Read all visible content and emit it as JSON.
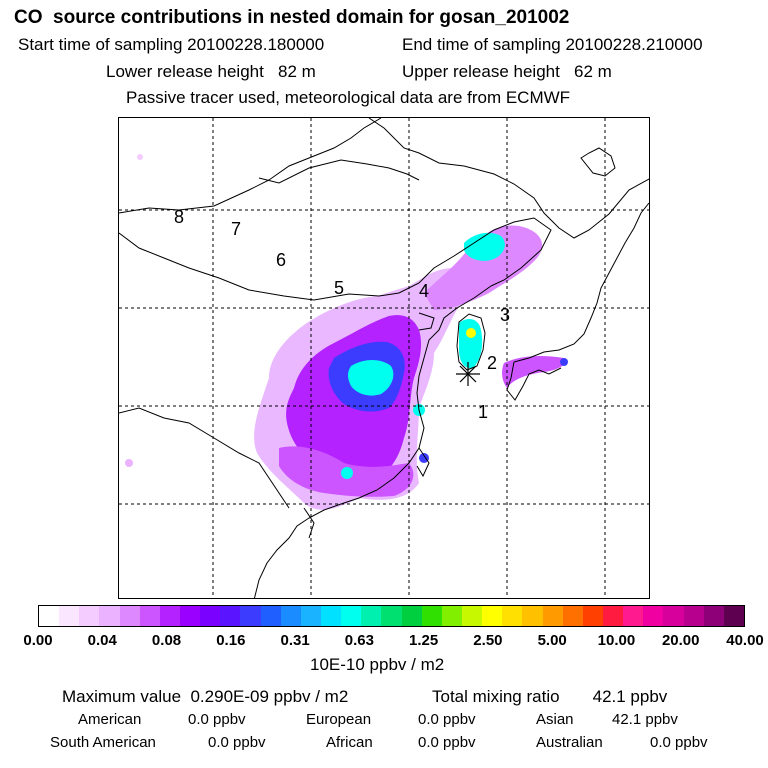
{
  "title": "CO  source contributions in nested domain for gosan_201002",
  "start_label": "Start time of sampling 20100228.180000",
  "end_label": "End time of sampling 20100228.210000",
  "lower_label": "Lower release height   82 m",
  "upper_label": "Upper release height   62 m",
  "tracer_note": "Passive tracer used, meteorological data are from ECMWF",
  "map": {
    "region_labels": [
      "8",
      "7",
      "6",
      "5",
      "4",
      "3",
      "2",
      "1"
    ],
    "station_marker": "asterisk-icon"
  },
  "colorbar": {
    "ticks": [
      "0.00",
      "0.04",
      "0.08",
      "0.16",
      "0.31",
      "0.63",
      "1.25",
      "2.50",
      "5.00",
      "10.00",
      "20.00",
      "40.00"
    ],
    "unit": "10E-10 ppbv / m2",
    "colors": [
      "#ffffff",
      "#fbe6ff",
      "#f4ccff",
      "#eab2ff",
      "#dd88ff",
      "#cc55ff",
      "#b322ff",
      "#9900ff",
      "#7a00ff",
      "#5a14ff",
      "#3c3cff",
      "#1f5fff",
      "#1a8cff",
      "#19b3ff",
      "#00e0ff",
      "#00ffee",
      "#00f0b0",
      "#00e070",
      "#00d040",
      "#30e000",
      "#80f000",
      "#c8f800",
      "#ffff00",
      "#ffe000",
      "#ffc000",
      "#ff9a00",
      "#ff7000",
      "#ff4000",
      "#ff1a40",
      "#ff1a90",
      "#f000a0",
      "#d8009c",
      "#b8008e",
      "#8e0078",
      "#5e004f"
    ]
  },
  "summary": {
    "max_label": "Maximum value  0.290E-09 ppbv / m2",
    "total_label": "Total mixing ratio       42.1 ppbv",
    "regions": [
      {
        "name": "American",
        "value": "0.0 ppbv"
      },
      {
        "name": "European",
        "value": "0.0 ppbv"
      },
      {
        "name": "Asian",
        "value": "42.1 ppbv"
      },
      {
        "name": "South American",
        "value": "0.0 ppbv"
      },
      {
        "name": "African",
        "value": "0.0 ppbv"
      },
      {
        "name": "Australian",
        "value": "0.0 ppbv"
      }
    ]
  }
}
